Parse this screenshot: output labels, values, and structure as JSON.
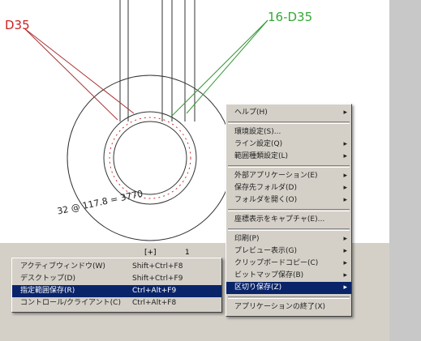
{
  "drawing": {
    "label_left": "D35",
    "label_right": "16-D35",
    "dimension": "32 @ 117.8 = 3770"
  },
  "tab_bar": {
    "items": [
      "[+]",
      "1"
    ]
  },
  "main_menu": {
    "items": [
      {
        "label": "ヘルプ(H)",
        "submenu": true
      },
      {
        "separator": true
      },
      {
        "label": "環境設定(S)..."
      },
      {
        "label": "ライン設定(Q)",
        "submenu": true
      },
      {
        "label": "範囲種類設定(L)",
        "submenu": true
      },
      {
        "separator": true
      },
      {
        "label": "外部アプリケーション(E)",
        "submenu": true
      },
      {
        "label": "保存先フォルダ(D)",
        "submenu": true
      },
      {
        "label": "フォルダを開く(O)",
        "submenu": true
      },
      {
        "separator": true
      },
      {
        "label": "座標表示をキャプチャ(E)..."
      },
      {
        "separator": true
      },
      {
        "label": "印刷(P)",
        "submenu": true
      },
      {
        "label": "プレビュー表示(G)",
        "submenu": true
      },
      {
        "label": "クリップボードコピー(C)",
        "submenu": true
      },
      {
        "label": "ビットマップ保存(B)",
        "submenu": true
      },
      {
        "label": "区切り保存(Z)",
        "submenu": true,
        "highlighted": true
      },
      {
        "separator": true
      },
      {
        "label": "アプリケーションの終了(X)"
      }
    ]
  },
  "sub_menu": {
    "items": [
      {
        "label": "アクティブウィンドウ(W)",
        "shortcut": "Shift+Ctrl+F8"
      },
      {
        "label": "デスクトップ(D)",
        "shortcut": "Shift+Ctrl+F9"
      },
      {
        "label": "指定範囲保存(R)",
        "shortcut": "Ctrl+Alt+F9",
        "highlighted": true
      },
      {
        "label": "コントロール/クライアント(C)",
        "shortcut": "Ctrl+Alt+F8"
      }
    ]
  }
}
